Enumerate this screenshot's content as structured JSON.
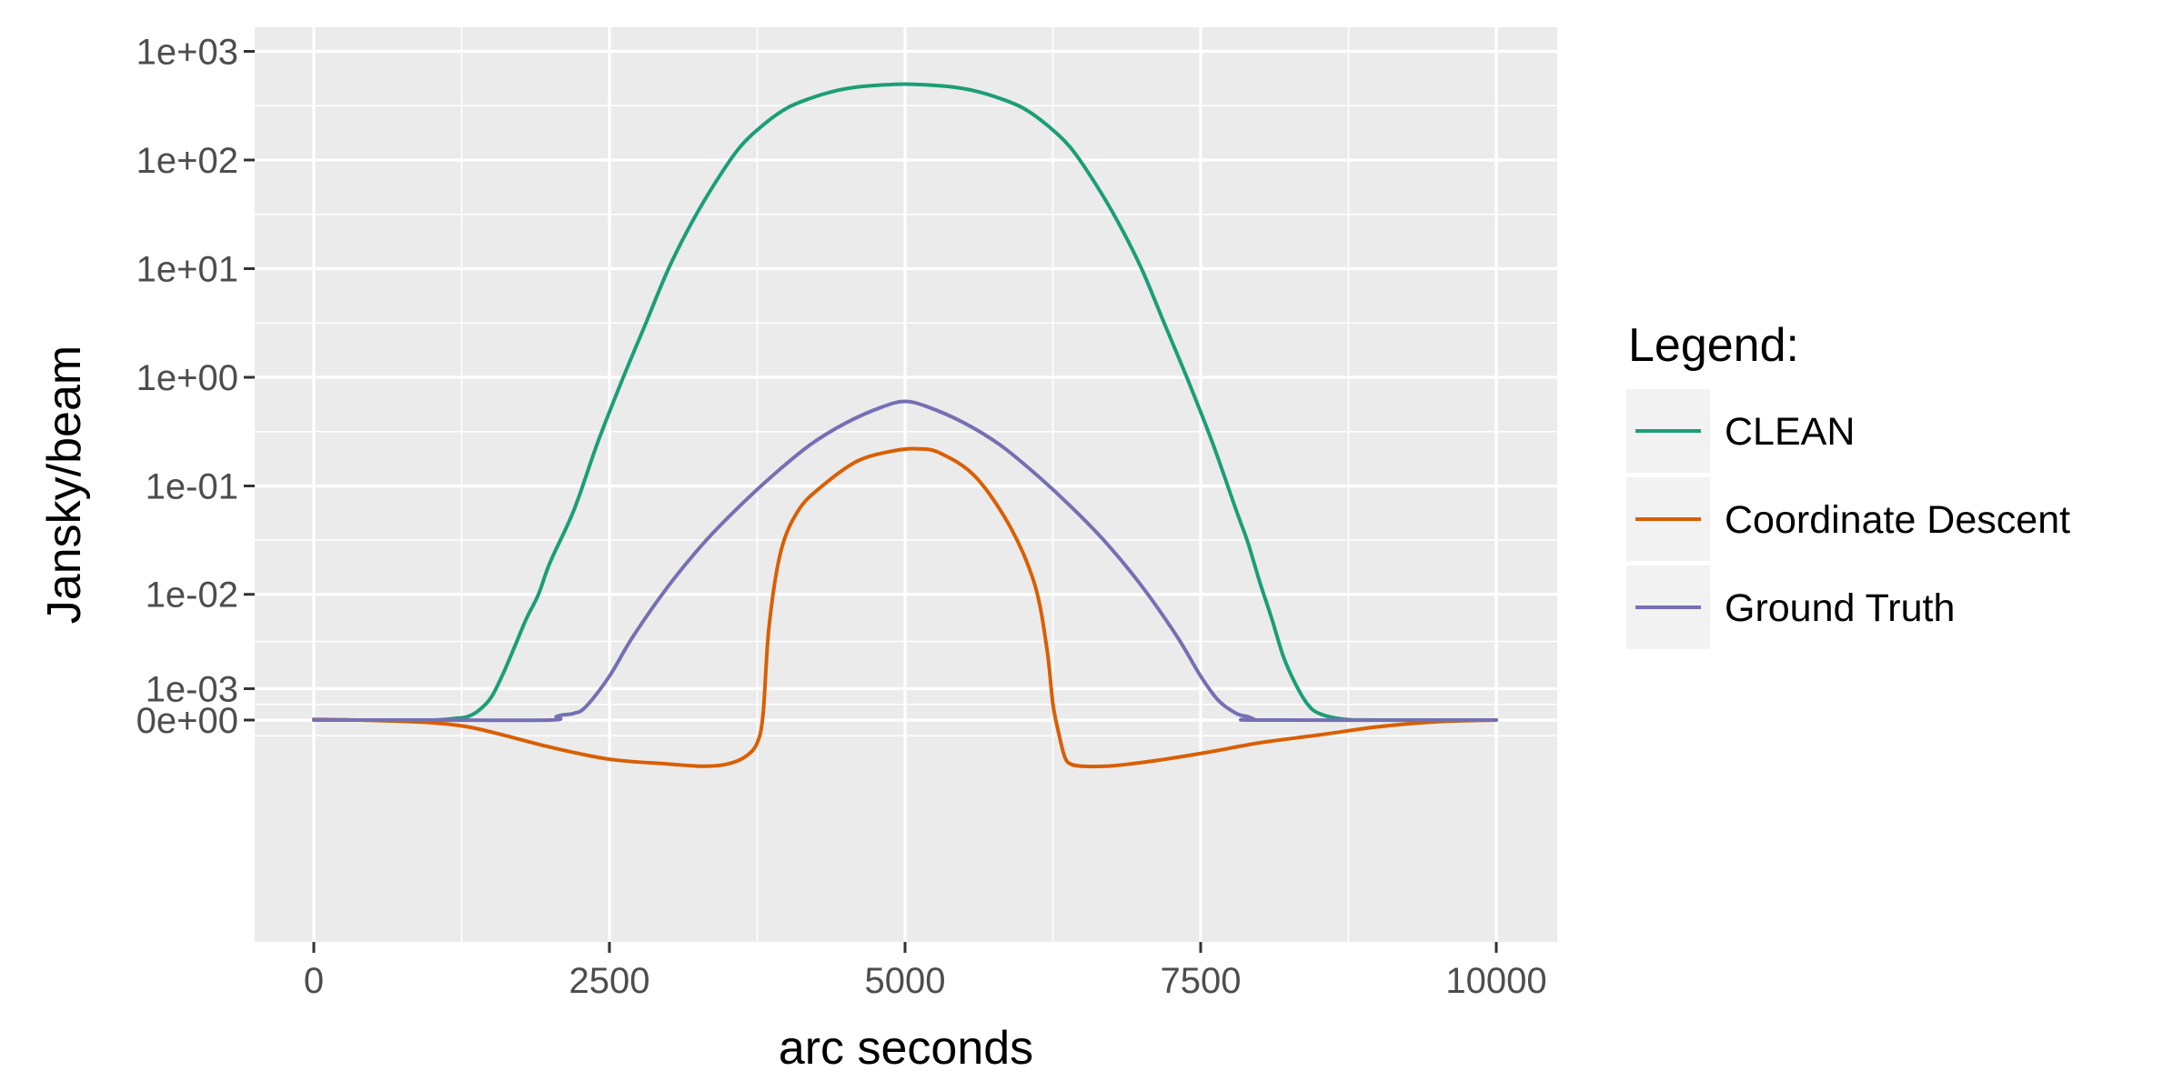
{
  "chart_data": {
    "type": "line",
    "xlabel": "arc seconds",
    "ylabel": "Jansky/beam",
    "y_scale": "pseudo-log (symmetric log, linear near zero)",
    "xlim": [
      -500,
      10500
    ],
    "x_ticks": [
      0,
      2500,
      5000,
      7500,
      10000
    ],
    "x_tick_labels": [
      "0",
      "2500",
      "5000",
      "7500",
      "10000"
    ],
    "y_ticks": [
      0,
      0.001,
      0.01,
      0.1,
      1,
      10,
      100,
      1000
    ],
    "y_tick_labels": [
      "0e+00",
      "1e-03",
      "1e-02",
      "1e-01",
      "1e+00",
      "1e+01",
      "1e+02",
      "1e+03"
    ],
    "grid": true,
    "legend": {
      "title": "Legend:",
      "position": "right"
    },
    "series": [
      {
        "name": "CLEAN",
        "color": "#1b9e77",
        "x": [
          0,
          500,
          1000,
          1200,
          1300,
          1400,
          1500,
          1600,
          1700,
          1800,
          1900,
          2000,
          2200,
          2400,
          2600,
          2800,
          3000,
          3200,
          3400,
          3600,
          3800,
          4000,
          4200,
          4400,
          4600,
          4800,
          5000,
          5200,
          5400,
          5600,
          5800,
          6000,
          6200,
          6400,
          6600,
          6800,
          7000,
          7200,
          7400,
          7600,
          7800,
          7900,
          8000,
          8100,
          8200,
          8300,
          8400,
          8500,
          8700,
          9000,
          10000
        ],
        "y": [
          0,
          0,
          0,
          5e-05,
          0.0001,
          0.0003,
          0.0007,
          0.0016,
          0.0032,
          0.006,
          0.01,
          0.02,
          0.06,
          0.25,
          0.9,
          3,
          10,
          27,
          63,
          130,
          210,
          300,
          370,
          430,
          470,
          490,
          500,
          490,
          470,
          430,
          370,
          300,
          210,
          130,
          63,
          27,
          10,
          3,
          0.9,
          0.25,
          0.06,
          0.03,
          0.013,
          0.006,
          0.0025,
          0.0012,
          0.0005,
          0.0002,
          3e-05,
          0,
          0
        ]
      },
      {
        "name": "Coordinate Descent",
        "color": "#d95f02",
        "x": [
          0,
          500,
          1000,
          1300,
          1600,
          2000,
          2500,
          3000,
          3300,
          3500,
          3650,
          3750,
          3800,
          3850,
          3950,
          4100,
          4300,
          4600,
          4900,
          5100,
          5300,
          5600,
          5900,
          6100,
          6200,
          6250,
          6300,
          6350,
          6400,
          6500,
          6700,
          6900,
          7200,
          7600,
          8000,
          8500,
          9000,
          9500,
          10000
        ],
        "y": [
          2e-05,
          -1e-05,
          -8e-05,
          -0.0002,
          -0.00045,
          -0.00085,
          -0.0013,
          -0.0015,
          -0.0016,
          -0.0015,
          -0.0012,
          -0.0007,
          0.0002,
          0.005,
          0.025,
          0.06,
          0.1,
          0.17,
          0.21,
          0.22,
          0.2,
          0.12,
          0.04,
          0.012,
          0.003,
          0.0005,
          -0.0004,
          -0.0012,
          -0.0015,
          -0.0016,
          -0.0016,
          -0.0015,
          -0.0013,
          -0.001,
          -0.0007,
          -0.00045,
          -0.0002,
          -5e-05,
          0
        ]
      },
      {
        "name": "Ground Truth",
        "color": "#7570b3",
        "x": [
          0,
          1000,
          2000,
          2050,
          2100,
          2200,
          2300,
          2500,
          2700,
          3000,
          3300,
          3600,
          3900,
          4200,
          4500,
          4800,
          5000,
          5200,
          5500,
          5800,
          6100,
          6400,
          6700,
          7000,
          7300,
          7500,
          7650,
          7800,
          7900,
          7950,
          8000,
          10000
        ],
        "y": [
          0,
          0,
          0,
          0.0001,
          0.00015,
          0.0002,
          0.0004,
          0.0015,
          0.004,
          0.012,
          0.03,
          0.065,
          0.13,
          0.24,
          0.38,
          0.53,
          0.6,
          0.53,
          0.38,
          0.24,
          0.13,
          0.065,
          0.03,
          0.012,
          0.004,
          0.0015,
          0.0006,
          0.0002,
          0.0001,
          3e-05,
          0,
          0
        ]
      }
    ]
  }
}
